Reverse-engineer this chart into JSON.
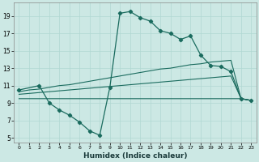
{
  "xlabel": "Humidex (Indice chaleur)",
  "bg_color": "#cce8e4",
  "grid_color": "#b0d8d2",
  "line_color": "#1a6b5e",
  "xlim": [
    -0.5,
    23.5
  ],
  "ylim": [
    4.5,
    20.5
  ],
  "xticks": [
    0,
    1,
    2,
    3,
    4,
    5,
    6,
    7,
    8,
    9,
    10,
    11,
    12,
    13,
    14,
    15,
    16,
    17,
    18,
    19,
    20,
    21,
    22,
    23
  ],
  "yticks": [
    5,
    7,
    9,
    11,
    13,
    15,
    17,
    19
  ],
  "curve_main_x": [
    0,
    2,
    3,
    4,
    5,
    6,
    7,
    8,
    9,
    10,
    11,
    12,
    13,
    14,
    15,
    16,
    17,
    18,
    19,
    20,
    21,
    22,
    23
  ],
  "curve_main_y": [
    10.5,
    11.0,
    9.0,
    8.2,
    7.6,
    6.8,
    5.8,
    5.3,
    10.8,
    19.3,
    19.5,
    18.8,
    18.4,
    17.3,
    17.0,
    16.3,
    16.7,
    14.5,
    13.3,
    13.2,
    12.6,
    9.5,
    9.3
  ],
  "curve_flat_x": [
    0,
    1,
    2,
    3,
    4,
    5,
    6,
    7,
    8,
    9,
    10,
    11,
    12,
    13,
    14,
    15,
    16,
    17,
    18,
    19,
    20,
    21,
    22,
    23
  ],
  "curve_flat_y": [
    9.5,
    9.5,
    9.5,
    9.5,
    9.5,
    9.5,
    9.5,
    9.5,
    9.5,
    9.5,
    9.5,
    9.5,
    9.5,
    9.5,
    9.5,
    9.5,
    9.5,
    9.5,
    9.5,
    9.5,
    9.5,
    9.5,
    9.5,
    9.3
  ],
  "curve_upper_x": [
    0,
    1,
    2,
    3,
    4,
    5,
    6,
    7,
    8,
    9,
    10,
    11,
    12,
    13,
    14,
    15,
    16,
    17,
    18,
    19,
    20,
    21,
    22,
    23
  ],
  "curve_upper_y": [
    10.3,
    10.5,
    10.6,
    10.8,
    11.0,
    11.1,
    11.3,
    11.5,
    11.7,
    11.9,
    12.1,
    12.3,
    12.5,
    12.7,
    12.9,
    13.0,
    13.2,
    13.4,
    13.5,
    13.7,
    13.8,
    13.9,
    9.5,
    9.3
  ],
  "curve_lower_x": [
    0,
    1,
    2,
    3,
    4,
    5,
    6,
    7,
    8,
    9,
    10,
    11,
    12,
    13,
    14,
    15,
    16,
    17,
    18,
    19,
    20,
    21,
    22,
    23
  ],
  "curve_lower_y": [
    10.0,
    10.1,
    10.2,
    10.3,
    10.4,
    10.5,
    10.6,
    10.7,
    10.8,
    10.9,
    11.0,
    11.1,
    11.2,
    11.3,
    11.4,
    11.5,
    11.6,
    11.7,
    11.8,
    11.9,
    12.0,
    12.1,
    9.5,
    9.3
  ]
}
